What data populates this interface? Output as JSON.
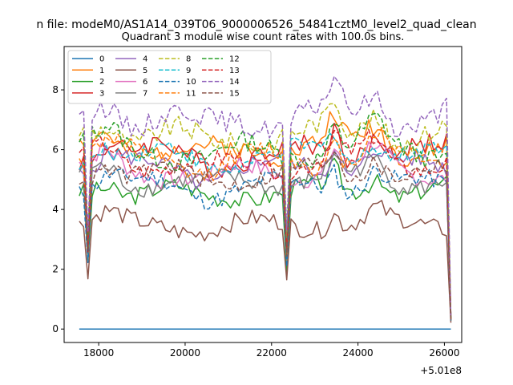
{
  "chart_data": {
    "type": "line",
    "suptitle": "n file: modeM0/AS1A14_039T06_9000006526_54841cztM0_level2_quad_clean",
    "title": "Quadrant 3 module wise count rates with 100.0s bins.",
    "xlabel": "",
    "ylabel": "",
    "x_offset_label": "+5.01e8",
    "xlim": [
      17200,
      26400
    ],
    "ylim": [
      -0.45,
      9.45
    ],
    "x_ticks": [
      18000,
      20000,
      22000,
      24000,
      26000
    ],
    "x_tick_labels": [
      "18000",
      "20000",
      "22000",
      "24000",
      "26000"
    ],
    "y_ticks": [
      0,
      2,
      4,
      6,
      8
    ],
    "y_tick_labels": [
      "0",
      "2",
      "4",
      "6",
      "8"
    ],
    "grid": false,
    "legend_location": "top-left",
    "legend_columns": 4,
    "x_start": 17550,
    "x_end": 26150,
    "bin_width": 100,
    "series": [
      {
        "name": "0",
        "color": "#1f77b4",
        "dash": "solid",
        "base": 0.0,
        "amp": 0.0,
        "seed": 1
      },
      {
        "name": "1",
        "color": "#ff7f0e",
        "dash": "solid",
        "base": 6.1,
        "amp": 0.35,
        "seed": 2
      },
      {
        "name": "2",
        "color": "#2ca02c",
        "dash": "solid",
        "base": 4.6,
        "amp": 0.3,
        "seed": 3
      },
      {
        "name": "3",
        "color": "#d62728",
        "dash": "solid",
        "base": 5.9,
        "amp": 0.35,
        "seed": 4
      },
      {
        "name": "4",
        "color": "#9467bd",
        "dash": "solid",
        "base": 5.4,
        "amp": 0.3,
        "seed": 5
      },
      {
        "name": "5",
        "color": "#8c564b",
        "dash": "solid",
        "base": 3.5,
        "amp": 0.3,
        "seed": 6
      },
      {
        "name": "6",
        "color": "#e377c2",
        "dash": "solid",
        "base": 5.3,
        "amp": 0.3,
        "seed": 7
      },
      {
        "name": "7",
        "color": "#7f7f7f",
        "dash": "solid",
        "base": 5.0,
        "amp": 0.3,
        "seed": 8
      },
      {
        "name": "8",
        "color": "#bcbd22",
        "dash": "dashed",
        "base": 6.5,
        "amp": 0.35,
        "seed": 9
      },
      {
        "name": "9",
        "color": "#17becf",
        "dash": "dashed",
        "base": 5.8,
        "amp": 0.3,
        "seed": 10
      },
      {
        "name": "10",
        "color": "#1f77b4",
        "dash": "dashed",
        "base": 4.8,
        "amp": 0.3,
        "seed": 11
      },
      {
        "name": "11",
        "color": "#ff7f0e",
        "dash": "dashed",
        "base": 5.7,
        "amp": 0.3,
        "seed": 12
      },
      {
        "name": "12",
        "color": "#2ca02c",
        "dash": "dashed",
        "base": 6.0,
        "amp": 0.35,
        "seed": 13
      },
      {
        "name": "13",
        "color": "#d62728",
        "dash": "dashed",
        "base": 5.6,
        "amp": 0.3,
        "seed": 14
      },
      {
        "name": "14",
        "color": "#9467bd",
        "dash": "dashed",
        "base": 7.1,
        "amp": 0.35,
        "seed": 15
      },
      {
        "name": "15",
        "color": "#8c564b",
        "dash": "dashed",
        "base": 5.2,
        "amp": 0.3,
        "seed": 16
      }
    ]
  }
}
